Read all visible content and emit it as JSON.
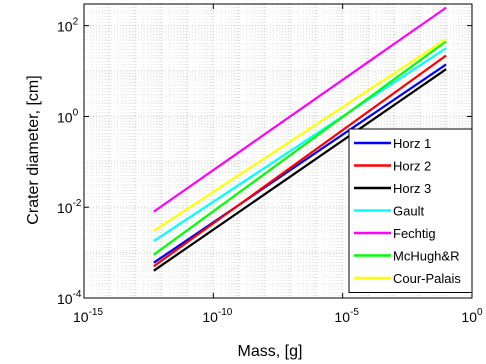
{
  "chart_data": {
    "type": "line",
    "xscale": "log",
    "yscale": "log",
    "xlabel": "Mass, [g]",
    "ylabel": "Crater diameter, [cm]",
    "xlim": [
      1e-15,
      1.0
    ],
    "ylim": [
      0.0001,
      300.0
    ],
    "grid": true,
    "legend_position": "bottom-right",
    "x_ticks": [
      {
        "value": 1e-15,
        "base": "10",
        "exp": "-15"
      },
      {
        "value": 1e-10,
        "base": "10",
        "exp": "-10"
      },
      {
        "value": 1e-05,
        "base": "10",
        "exp": "-5"
      },
      {
        "value": 1.0,
        "base": "10",
        "exp": "0"
      }
    ],
    "y_ticks": [
      {
        "value": 0.0001,
        "base": "10",
        "exp": "-4"
      },
      {
        "value": 0.01,
        "base": "10",
        "exp": "-2"
      },
      {
        "value": 1.0,
        "base": "10",
        "exp": "0"
      },
      {
        "value": 100.0,
        "base": "10",
        "exp": "2"
      }
    ],
    "x": [
      5e-13,
      0.1
    ],
    "series": [
      {
        "name": "Horz 1",
        "color": "#0000ff",
        "values": [
          0.0006,
          14
        ]
      },
      {
        "name": "Horz 2",
        "color": "#ff0000",
        "values": [
          0.0005,
          22
        ]
      },
      {
        "name": "Horz 3",
        "color": "#000000",
        "values": [
          0.0004,
          11
        ]
      },
      {
        "name": "Gault",
        "color": "#00ffff",
        "values": [
          0.0018,
          32
        ]
      },
      {
        "name": "Fechtig",
        "color": "#ff00ff",
        "values": [
          0.008,
          250
        ]
      },
      {
        "name": "McHugh&R",
        "color": "#00ff00",
        "values": [
          0.0009,
          45
        ]
      },
      {
        "name": "Cour-Palais",
        "color": "#ffff00",
        "values": [
          0.003,
          50
        ]
      }
    ]
  }
}
